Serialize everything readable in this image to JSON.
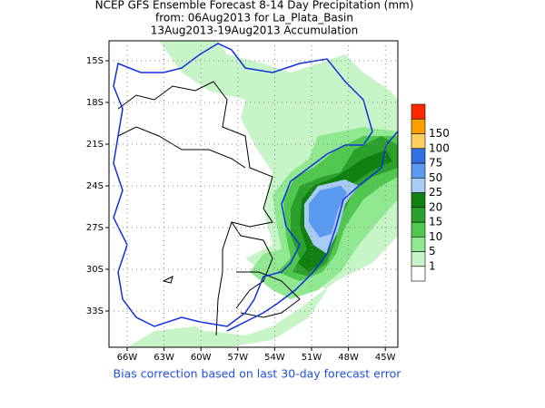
{
  "title": [
    "NCEP GFS Ensemble Forecast 8-14 Day Precipitation (mm)",
    "from: 06Aug2013   for La_Plata_Basin",
    "13Aug2013-19Aug2013 Accumulation"
  ],
  "xticks": [
    "66W",
    "63W",
    "60W",
    "57W",
    "54W",
    "51W",
    "48W",
    "45W"
  ],
  "yticks": [
    "15S",
    "18S",
    "21S",
    "24S",
    "27S",
    "30S",
    "33S"
  ],
  "colorbar": {
    "levels": [
      1,
      5,
      10,
      15,
      20,
      25,
      50,
      75,
      100,
      150
    ],
    "colors": [
      "#ffffff",
      "#c8f5c8",
      "#90e890",
      "#50c850",
      "#2ca02c",
      "#108010",
      "#a8ccf5",
      "#5a9af0",
      "#3070e0",
      "#ffd060",
      "#ffa000",
      "#ff2800"
    ]
  },
  "footer": "Bias correction based on last 30-day forecast error"
}
